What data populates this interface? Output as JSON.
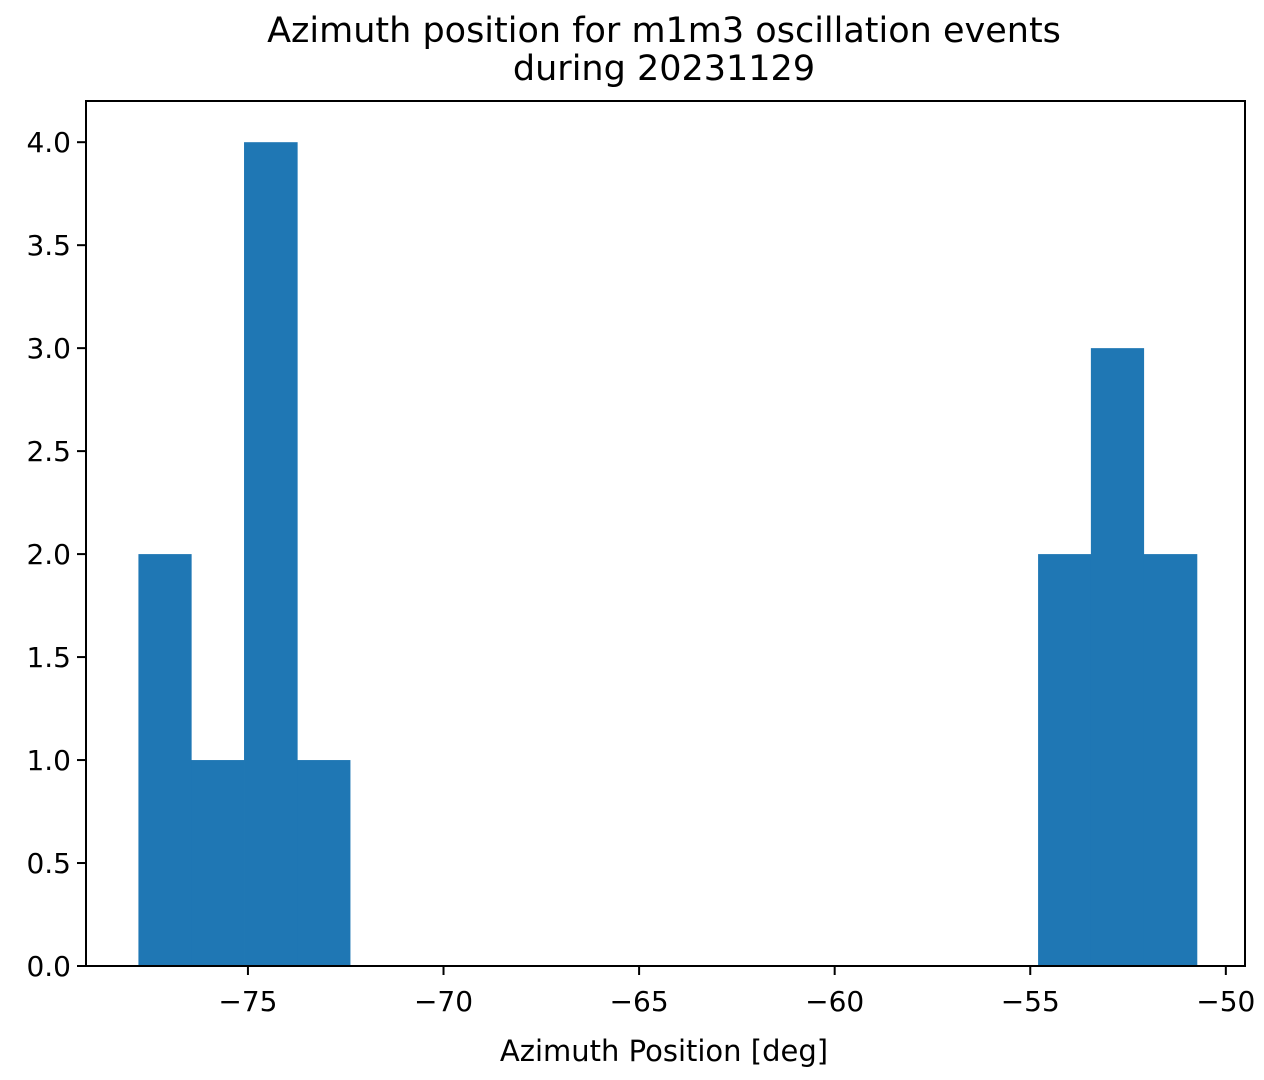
{
  "chart_data": {
    "type": "bar",
    "title_lines": [
      "Azimuth position for m1m3 oscillation events",
      "during 20231129"
    ],
    "xlabel": "Azimuth Position [deg]",
    "ylabel": "",
    "xlim": [
      -79.14,
      -49.51
    ],
    "ylim": [
      0,
      4.2
    ],
    "x_ticks": [
      -75,
      -70,
      -65,
      -60,
      -55,
      -50
    ],
    "x_tick_labels": [
      "−75",
      "−70",
      "−65",
      "−60",
      "−55",
      "−50"
    ],
    "y_ticks": [
      0.0,
      0.5,
      1.0,
      1.5,
      2.0,
      2.5,
      3.0,
      3.5,
      4.0
    ],
    "y_tick_labels": [
      "0.0",
      "0.5",
      "1.0",
      "1.5",
      "2.0",
      "2.5",
      "3.0",
      "3.5",
      "4.0"
    ],
    "bin_edges": [
      -77.8,
      -76.45,
      -75.1,
      -73.74,
      -72.39,
      -71.04,
      -69.68,
      -68.33,
      -66.98,
      -65.62,
      -64.27,
      -62.92,
      -61.57,
      -60.21,
      -58.86,
      -57.51,
      -56.15,
      -54.8,
      -53.45,
      -52.1,
      -50.74
    ],
    "values": [
      2,
      1,
      4,
      1,
      0,
      0,
      0,
      0,
      0,
      0,
      0,
      0,
      0,
      0,
      0,
      0,
      0,
      2,
      3,
      2
    ],
    "bar_color": "#1f77b4",
    "grid": false,
    "legend": "none"
  }
}
